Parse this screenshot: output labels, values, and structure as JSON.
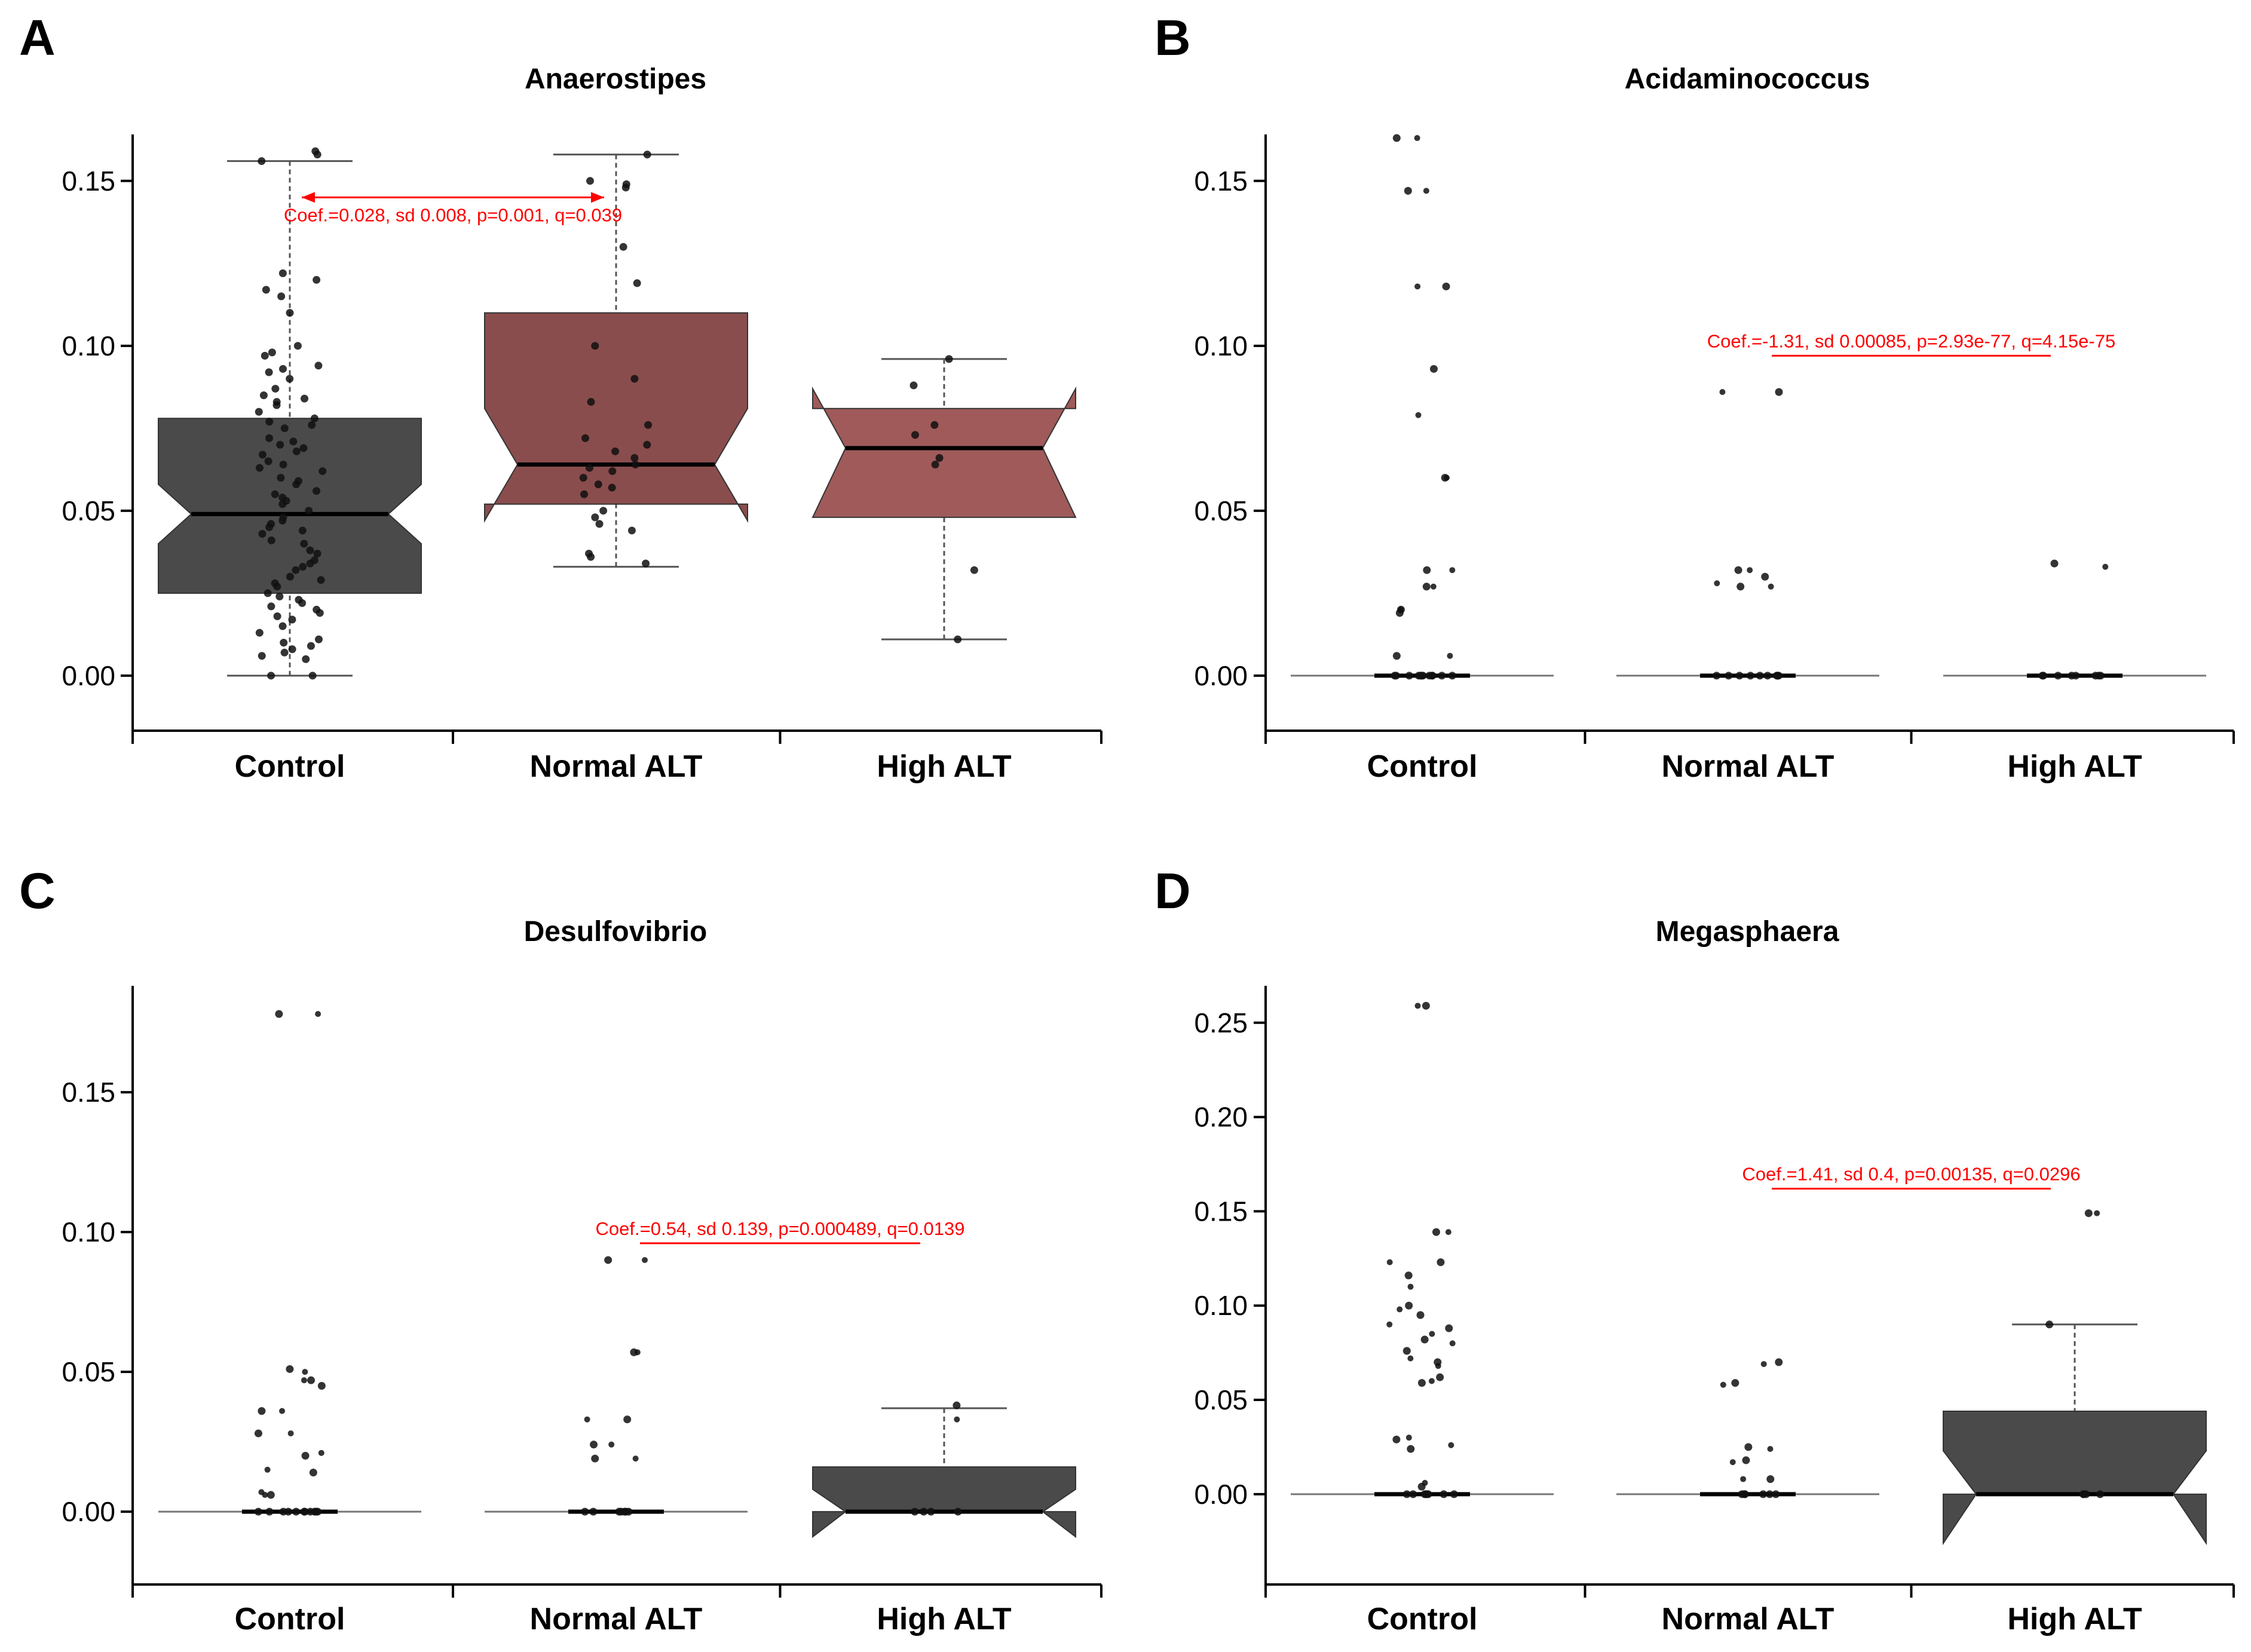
{
  "colors": {
    "dark": "#4a4a4a",
    "maroon": "#8a4d4d",
    "maroon_light": "#a05a5a",
    "annotation": "#ff0000"
  },
  "chart_data": [
    {
      "panel": "A",
      "type": "boxplot",
      "title": "Anaerostipes",
      "categories": [
        "Control",
        "Normal ALT",
        "High ALT"
      ],
      "yticks": [
        "0.00",
        "0.05",
        "0.10",
        "0.15"
      ],
      "ylim": [
        -0.008,
        0.165
      ],
      "annotation": {
        "text": "Coef.=0.028, sd 0.008, p=0.001, q=0.039",
        "from": 0,
        "to": 1,
        "arrow": true,
        "y": 0.145
      },
      "boxes": [
        {
          "fill": "dark",
          "q1": 0.025,
          "median": 0.049,
          "q3": 0.078,
          "notch_low": 0.04,
          "notch_high": 0.058,
          "whisker_low": 0.0,
          "whisker_high": 0.156
        },
        {
          "fill": "maroon",
          "q1": 0.052,
          "median": 0.064,
          "q3": 0.11,
          "notch_low": 0.047,
          "notch_high": 0.081,
          "whisker_low": 0.033,
          "whisker_high": 0.158
        },
        {
          "fill": "maroon_light",
          "q1": 0.048,
          "median": 0.069,
          "q3": 0.081,
          "notch_low": 0.048,
          "notch_high": 0.087,
          "whisker_low": 0.011,
          "whisker_high": 0.096
        }
      ],
      "points": [
        [
          0.159,
          0.158,
          0.156,
          0.122,
          0.12,
          0.117,
          0.115,
          0.11,
          0.1,
          0.098,
          0.097,
          0.094,
          0.093,
          0.092,
          0.09,
          0.087,
          0.085,
          0.084,
          0.083,
          0.082,
          0.08,
          0.078,
          0.077,
          0.076,
          0.075,
          0.072,
          0.071,
          0.07,
          0.069,
          0.068,
          0.067,
          0.065,
          0.064,
          0.063,
          0.062,
          0.06,
          0.059,
          0.058,
          0.056,
          0.055,
          0.054,
          0.053,
          0.052,
          0.05,
          0.048,
          0.047,
          0.046,
          0.045,
          0.044,
          0.043,
          0.041,
          0.04,
          0.038,
          0.037,
          0.035,
          0.034,
          0.033,
          0.032,
          0.03,
          0.029,
          0.028,
          0.027,
          0.025,
          0.024,
          0.023,
          0.022,
          0.021,
          0.02,
          0.019,
          0.018,
          0.017,
          0.015,
          0.013,
          0.011,
          0.01,
          0.009,
          0.008,
          0.007,
          0.006,
          0.005,
          0.0,
          0.0
        ],
        [
          0.158,
          0.15,
          0.149,
          0.148,
          0.13,
          0.119,
          0.1,
          0.09,
          0.083,
          0.076,
          0.072,
          0.07,
          0.068,
          0.066,
          0.064,
          0.063,
          0.062,
          0.06,
          0.058,
          0.057,
          0.055,
          0.05,
          0.048,
          0.046,
          0.044,
          0.037,
          0.036,
          0.034
        ],
        [
          0.096,
          0.088,
          0.076,
          0.073,
          0.066,
          0.064,
          0.032,
          0.011
        ]
      ]
    },
    {
      "panel": "B",
      "type": "boxplot",
      "title": "Acidaminococcus",
      "categories": [
        "Control",
        "Normal ALT",
        "High ALT"
      ],
      "yticks": [
        "0.00",
        "0.05",
        "0.10",
        "0.15"
      ],
      "ylim": [
        -0.008,
        0.165
      ],
      "annotation": {
        "text": "Coef.=-1.31, sd 0.00085, p=2.93e-77, q=4.15e-75",
        "from": 1,
        "to": 2,
        "arrow": false,
        "y": 0.097
      },
      "boxes": [
        {
          "fill": "dark",
          "q1": 0,
          "median": 0,
          "q3": 0,
          "notch_low": 0,
          "notch_high": 0,
          "whisker_low": 0,
          "whisker_high": 0
        },
        {
          "fill": "dark",
          "q1": 0,
          "median": 0,
          "q3": 0,
          "notch_low": 0,
          "notch_high": 0,
          "whisker_low": 0,
          "whisker_high": 0
        },
        {
          "fill": "dark",
          "q1": 0,
          "median": 0,
          "q3": 0,
          "notch_low": 0,
          "notch_high": 0,
          "whisker_low": 0,
          "whisker_high": 0
        }
      ],
      "points": [
        [
          0.163,
          0.163,
          0.147,
          0.147,
          0.118,
          0.118,
          0.093,
          0.079,
          0.06,
          0.06,
          0.032,
          0.032,
          0.027,
          0.027,
          0.02,
          0.02,
          0.019,
          0.006,
          0.006,
          0.0,
          0.0,
          0.0,
          0.0,
          0.0,
          0.0,
          0.0,
          0.0,
          0.0,
          0.0,
          0.0,
          0.0
        ],
        [
          0.086,
          0.086,
          0.032,
          0.032,
          0.03,
          0.028,
          0.027,
          0.027,
          0.0,
          0.0,
          0.0,
          0.0,
          0.0,
          0.0,
          0.0,
          0.0,
          0.0,
          0.0
        ],
        [
          0.034,
          0.033,
          0.0,
          0.0,
          0.0,
          0.0,
          0.0,
          0.0,
          0.0,
          0.0
        ]
      ]
    },
    {
      "panel": "C",
      "type": "boxplot",
      "title": "Desulfovibrio",
      "categories": [
        "Control",
        "Normal ALT",
        "High ALT"
      ],
      "yticks": [
        "0.00",
        "0.05",
        "0.10",
        "0.15"
      ],
      "ylim": [
        -0.016,
        0.187
      ],
      "annotation": {
        "text": "Coef.=0.54, sd 0.139, p=0.000489, q=0.0139",
        "from": 1,
        "to": 2,
        "arrow": false,
        "y": 0.096
      },
      "boxes": [
        {
          "fill": "dark",
          "q1": 0,
          "median": 0,
          "q3": 0,
          "notch_low": 0,
          "notch_high": 0,
          "whisker_low": 0,
          "whisker_high": 0
        },
        {
          "fill": "dark",
          "q1": 0,
          "median": 0,
          "q3": 0,
          "notch_low": 0,
          "notch_high": 0,
          "whisker_low": 0,
          "whisker_high": 0
        },
        {
          "fill": "dark",
          "q1": 0,
          "median": 0,
          "q3": 0.016,
          "notch_low": -0.009,
          "notch_high": 0.008,
          "whisker_low": 0,
          "whisker_high": 0.037
        }
      ],
      "points": [
        [
          0.178,
          0.178,
          0.051,
          0.05,
          0.047,
          0.047,
          0.045,
          0.036,
          0.036,
          0.028,
          0.028,
          0.021,
          0.02,
          0.015,
          0.014,
          0.007,
          0.006,
          0.006,
          0.0,
          0.0,
          0.0,
          0.0,
          0.0,
          0.0,
          0.0,
          0.0,
          0.0,
          0.0,
          0.0
        ],
        [
          0.09,
          0.09,
          0.057,
          0.057,
          0.033,
          0.033,
          0.024,
          0.024,
          0.019,
          0.019,
          0.0,
          0.0,
          0.0,
          0.0,
          0.0,
          0.0,
          0.0
        ],
        [
          0.038,
          0.033,
          0.0,
          0.0,
          0.0,
          0.0
        ]
      ]
    },
    {
      "panel": "D",
      "type": "boxplot",
      "title": "Megasphaera",
      "categories": [
        "Control",
        "Normal ALT",
        "High ALT"
      ],
      "yticks": [
        "0.00",
        "0.05",
        "0.10",
        "0.15",
        "0.20",
        "0.25"
      ],
      "ylim": [
        -0.033,
        0.268
      ],
      "annotation": {
        "text": "Coef.=1.41, sd 0.4, p=0.00135, q=0.0296",
        "from": 1,
        "to": 2,
        "arrow": false,
        "y": 0.162
      },
      "boxes": [
        {
          "fill": "dark",
          "q1": 0,
          "median": 0,
          "q3": 0,
          "notch_low": 0,
          "notch_high": 0,
          "whisker_low": 0,
          "whisker_high": 0
        },
        {
          "fill": "dark",
          "q1": 0,
          "median": 0,
          "q3": 0,
          "notch_low": 0,
          "notch_high": 0,
          "whisker_low": 0,
          "whisker_high": 0
        },
        {
          "fill": "dark",
          "q1": 0,
          "median": 0,
          "q3": 0.044,
          "notch_low": -0.026,
          "notch_high": 0.023,
          "whisker_low": 0,
          "whisker_high": 0.09
        }
      ],
      "points": [
        [
          0.259,
          0.259,
          0.139,
          0.139,
          0.123,
          0.123,
          0.116,
          0.11,
          0.1,
          0.098,
          0.095,
          0.09,
          0.088,
          0.085,
          0.082,
          0.08,
          0.076,
          0.072,
          0.07,
          0.068,
          0.062,
          0.06,
          0.059,
          0.03,
          0.029,
          0.026,
          0.024,
          0.006,
          0.004,
          0.0,
          0.0,
          0.0,
          0.0,
          0.0,
          0.0,
          0.0,
          0.0
        ],
        [
          0.07,
          0.069,
          0.059,
          0.058,
          0.025,
          0.024,
          0.018,
          0.017,
          0.008,
          0.008,
          0.0,
          0.0,
          0.0,
          0.0,
          0.0,
          0.0
        ],
        [
          0.149,
          0.149,
          0.09,
          0.0,
          0.0,
          0.0,
          0.0
        ]
      ]
    }
  ]
}
